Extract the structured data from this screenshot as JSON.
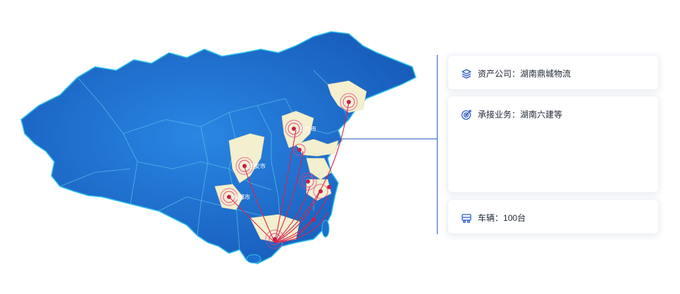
{
  "cards": {
    "company": {
      "icon": "layers-icon",
      "label": "资产公司：",
      "value": "湖南鼎城物流"
    },
    "business": {
      "icon": "target-icon",
      "label": "承接业务：",
      "value": "湖南六建等"
    },
    "vehicles": {
      "icon": "truck-icon",
      "label": "车辆：",
      "value": "100台"
    }
  },
  "map": {
    "region": "China",
    "base_color": "#1c6fd0",
    "highlight_color": "#f3efcf",
    "route_color": "#d8244a",
    "city_labels": [
      "北京市",
      "西安市",
      "成都市"
    ]
  },
  "colors": {
    "accent": "#2f5ec8",
    "text": "#1f2733"
  }
}
